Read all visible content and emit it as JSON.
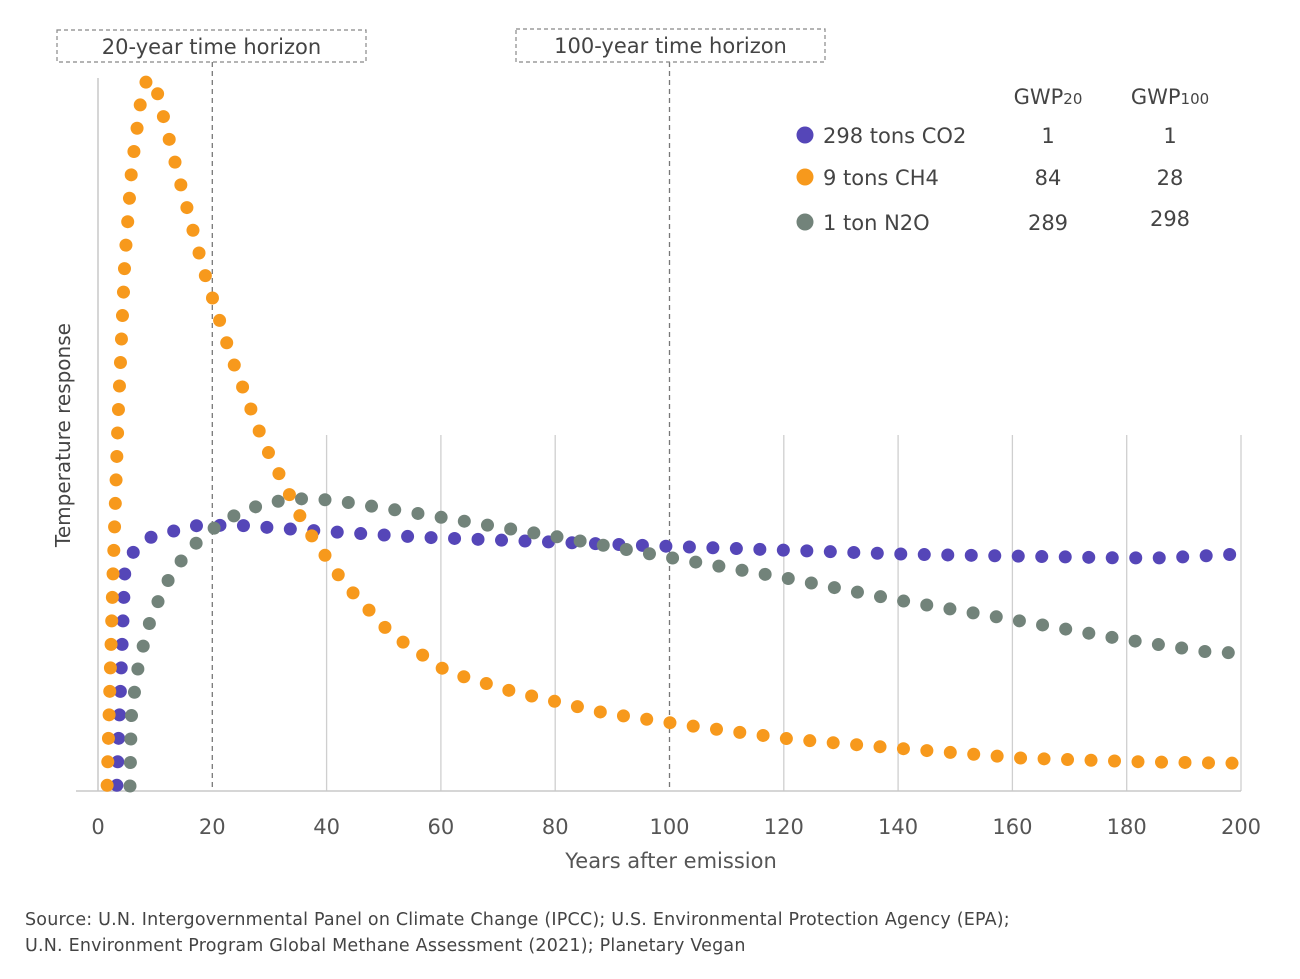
{
  "chart_data": {
    "type": "scatter",
    "style": "dotted-lines",
    "xlabel": "Years after emission",
    "ylabel": "Temperature response",
    "xlim": [
      0,
      200
    ],
    "ylim": [
      0,
      100
    ],
    "y_ticks_shown": false,
    "x_ticks": [
      "0",
      "20",
      "40",
      "60",
      "80",
      "100",
      "120",
      "140",
      "160",
      "180",
      "200"
    ],
    "grid": "vertical",
    "horizons": [
      {
        "x": 20,
        "label": "20-year time horizon"
      },
      {
        "x": 100,
        "label": "100-year time horizon"
      }
    ],
    "legend": {
      "placement": "top-right",
      "headers": [
        {
          "base": "GWP",
          "sub": "20"
        },
        {
          "base": "GWP",
          "sub": "100"
        }
      ]
    },
    "series": [
      {
        "name": "298 tons CO2",
        "color": "#5546b8",
        "gwp20": "1",
        "gwp100": "1",
        "points": [
          [
            3.3,
            0.8
          ],
          [
            4.7,
            31
          ],
          [
            6.3,
            33.7
          ],
          [
            9.3,
            35.6
          ],
          [
            16.6,
            37.2
          ],
          [
            24.1,
            37.3
          ],
          [
            36,
            36.6
          ],
          [
            56.3,
            35.6
          ],
          [
            96.9,
            34.4
          ],
          [
            141.9,
            33.2
          ],
          [
            178.7,
            32.7
          ],
          [
            186.7,
            32.7
          ],
          [
            198.8,
            33.2
          ]
        ]
      },
      {
        "name": "9 tons CH4",
        "color": "#f7991c",
        "gwp20": "84",
        "gwp100": "28",
        "points": [
          [
            1.6,
            0.8
          ],
          [
            2.6,
            29.6
          ],
          [
            3.5,
            52
          ],
          [
            4.7,
            74.5
          ],
          [
            5.9,
            87.4
          ],
          [
            7.5,
            96.9
          ],
          [
            8.6,
            100
          ],
          [
            10.3,
            98.2
          ],
          [
            14.3,
            85.6
          ],
          [
            18.5,
            73
          ],
          [
            23.3,
            60.9
          ],
          [
            29,
            48.8
          ],
          [
            36.2,
            37.2
          ],
          [
            43,
            29.2
          ],
          [
            51.3,
            22
          ],
          [
            61.2,
            16.7
          ],
          [
            72.8,
            13.9
          ],
          [
            88.9,
            10.9
          ],
          [
            105,
            9
          ],
          [
            121,
            7.3
          ],
          [
            141.4,
            5.9
          ],
          [
            161.9,
            4.6
          ],
          [
            182.3,
            4.1
          ],
          [
            198.6,
            3.9
          ]
        ]
      },
      {
        "name": "1 ton N2O",
        "color": "#72837a",
        "gwp20": "289",
        "gwp100": "298",
        "points": [
          [
            5.6,
            0.7
          ],
          [
            5.8,
            10.2
          ],
          [
            6.8,
            16.5
          ],
          [
            8.6,
            22.7
          ],
          [
            11.5,
            28.6
          ],
          [
            15.9,
            33.9
          ],
          [
            22,
            38
          ],
          [
            29.2,
            40.4
          ],
          [
            35,
            41
          ],
          [
            41.1,
            40.8
          ],
          [
            57,
            38.8
          ],
          [
            80.7,
            35.6
          ],
          [
            100.4,
            32.7
          ],
          [
            120.2,
            29.9
          ],
          [
            139.8,
            26.8
          ],
          [
            159.6,
            24.1
          ],
          [
            179.2,
            21.3
          ],
          [
            195.1,
            19.4
          ],
          [
            199.1,
            19.4
          ]
        ]
      }
    ]
  },
  "source": {
    "line1": "Source: U.N. Intergovernmental Panel on Climate Change (IPCC); U.S. Environmental Protection Agency (EPA);",
    "line2": "U.N. Environment Program Global Methane Assessment (2021); Planetary Vegan"
  }
}
